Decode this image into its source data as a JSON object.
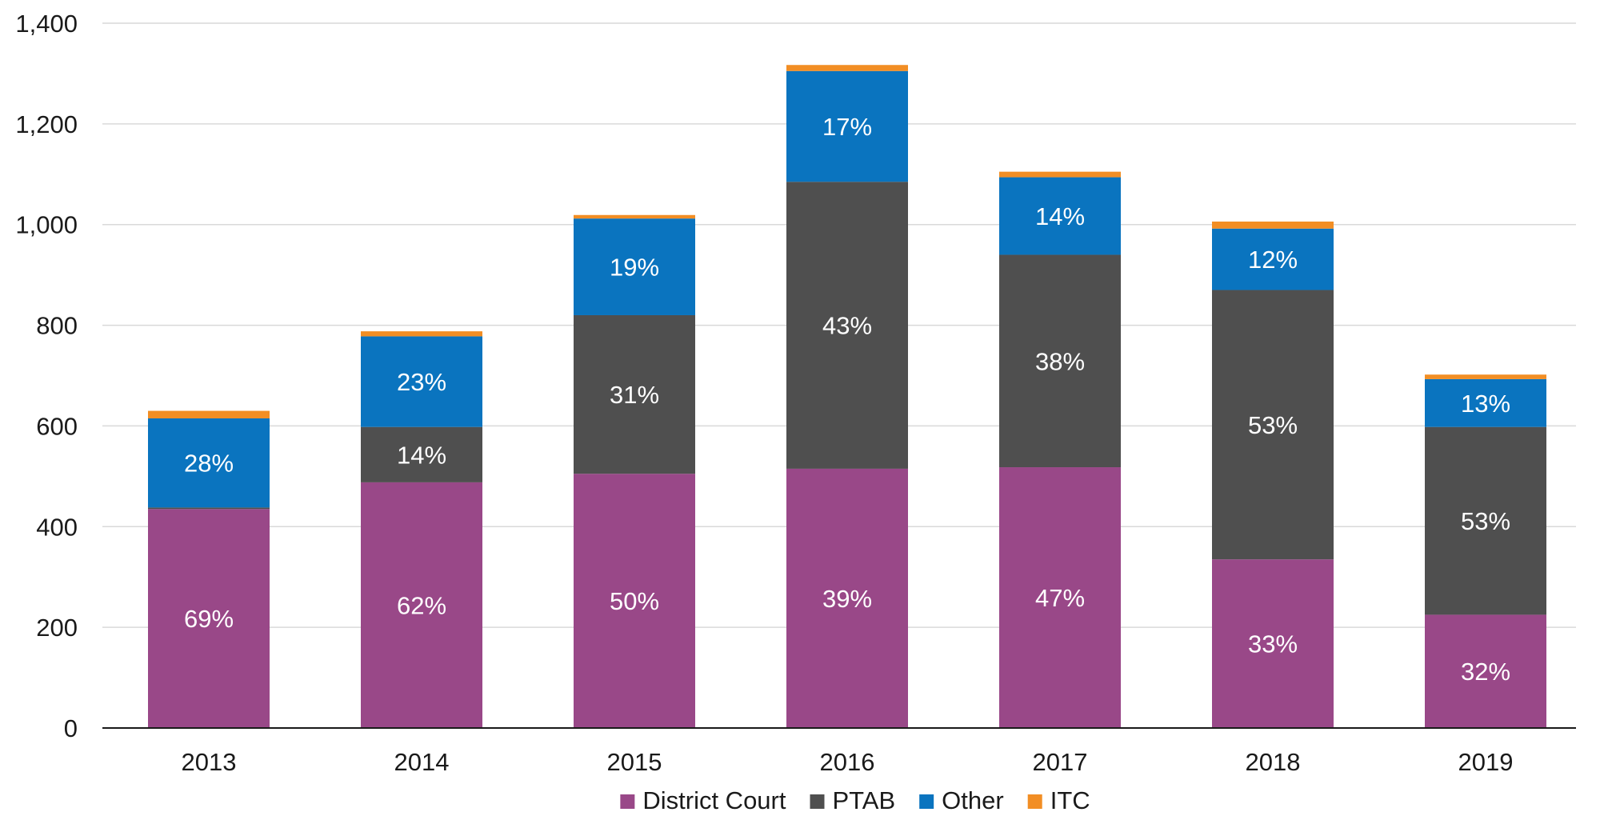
{
  "chart_data": {
    "type": "bar",
    "stacked": true,
    "title": "",
    "xlabel": "",
    "ylabel": "",
    "categories": [
      "2013",
      "2014",
      "2015",
      "2016",
      "2017",
      "2018",
      "2019"
    ],
    "ylim": [
      0,
      1400
    ],
    "yticks": [
      0,
      200,
      400,
      600,
      800,
      1000,
      1200,
      1400
    ],
    "ytick_labels": [
      "0",
      "200",
      "400",
      "600",
      "800",
      "1,000",
      "1,200",
      "1,400"
    ],
    "grid": true,
    "legend_position": "bottom",
    "series": [
      {
        "name": "District Court",
        "color": "#994888",
        "values": [
          435,
          488,
          505,
          515,
          518,
          335,
          225
        ],
        "labels": [
          "69%",
          "62%",
          "50%",
          "39%",
          "47%",
          "33%",
          "32%"
        ]
      },
      {
        "name": "PTAB",
        "color": "#4f4f4f",
        "values": [
          3,
          110,
          315,
          570,
          422,
          535,
          373
        ],
        "labels": [
          "",
          "14%",
          "31%",
          "43%",
          "38%",
          "53%",
          "53%"
        ]
      },
      {
        "name": "Other",
        "color": "#0a74bf",
        "values": [
          177,
          180,
          192,
          220,
          154,
          122,
          95
        ],
        "labels": [
          "28%",
          "23%",
          "19%",
          "17%",
          "14%",
          "12%",
          "13%"
        ]
      },
      {
        "name": "ITC",
        "color": "#f28e24",
        "values": [
          15,
          10,
          7,
          12,
          11,
          14,
          9
        ],
        "labels": [
          "",
          "",
          "",
          "",
          "",
          "",
          ""
        ]
      }
    ]
  }
}
